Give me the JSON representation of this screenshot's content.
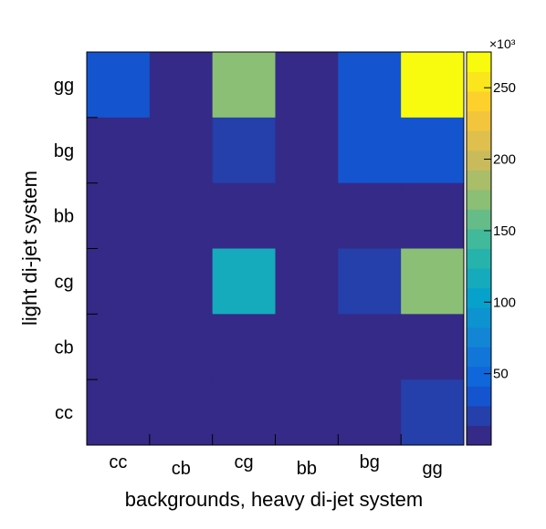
{
  "chart_data": {
    "type": "heatmap",
    "x_label": "backgrounds, heavy di-jet system",
    "y_label": "light di-jet system",
    "x_categories": [
      "cc",
      "cb",
      "cg",
      "bb",
      "bg",
      "gg"
    ],
    "y_categories": [
      "gg",
      "bg",
      "bb",
      "cg",
      "cb",
      "cc"
    ],
    "z": [
      [
        40,
        5,
        170,
        5,
        40,
        270
      ],
      [
        5,
        5,
        25,
        5,
        40,
        40
      ],
      [
        5,
        5,
        5,
        5,
        5,
        5
      ],
      [
        5,
        5,
        110,
        5,
        25,
        170
      ],
      [
        5,
        5,
        5,
        5,
        5,
        5
      ],
      [
        5,
        5,
        5,
        5,
        5,
        25
      ]
    ],
    "zlim": [
      0,
      275
    ],
    "zticks": [
      50,
      100,
      150,
      200,
      250
    ],
    "z_exponent_label": "×10³",
    "levels": 20,
    "colorscale": [
      "#352a87",
      "#0f5cdd",
      "#1481d6",
      "#06a4ca",
      "#2eb7a4",
      "#87bf77",
      "#d1bb59",
      "#fec832",
      "#f9fb0e"
    ]
  }
}
